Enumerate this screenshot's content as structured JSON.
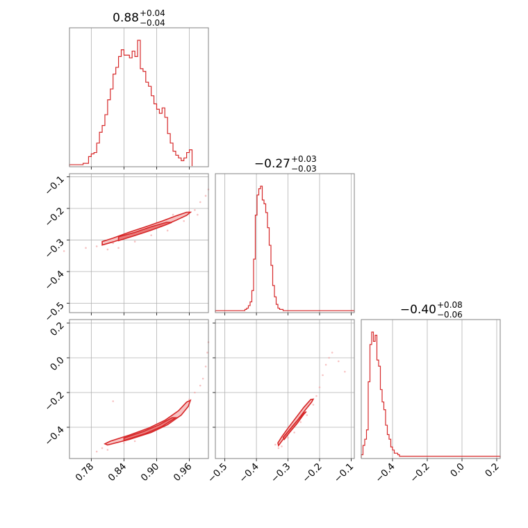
{
  "chart_data": {
    "type": "corner",
    "colors": {
      "line": "#d62728",
      "grid": "#b0b0b0",
      "frame": "#808080",
      "scatter": "#f4a8a8",
      "fill_outer": "#f7c4c4",
      "fill_inner": "#e97a7a"
    },
    "parameters": [
      {
        "id": "p0",
        "title": {
          "median": "0.88",
          "plus": "+0.04",
          "minus": "−0.04"
        },
        "range": [
          0.74,
          0.995
        ],
        "ticks": [
          0.78,
          0.84,
          0.9,
          0.96
        ],
        "tick_labels": [
          "0.78",
          "0.84",
          "0.90",
          "0.96"
        ],
        "histogram": {
          "bin_start": 0.74,
          "bin_width": 0.005,
          "values": [
            0.01,
            0.01,
            0.01,
            0.01,
            0.01,
            0.02,
            0.02,
            0.07,
            0.09,
            0.1,
            0.17,
            0.25,
            0.3,
            0.38,
            0.49,
            0.57,
            0.68,
            0.73,
            0.81,
            0.86,
            0.82,
            0.82,
            0.8,
            0.85,
            0.81,
            0.93,
            0.72,
            0.7,
            0.62,
            0.59,
            0.52,
            0.46,
            0.42,
            0.39,
            0.43,
            0.36,
            0.24,
            0.17,
            0.11,
            0.08,
            0.06,
            0.04,
            0.06,
            0.1,
            0.12
          ]
        }
      },
      {
        "id": "p1",
        "title": {
          "median": "−0.27",
          "plus": "+0.03",
          "minus": "−0.03"
        },
        "range": [
          -0.53,
          -0.09
        ],
        "ticks": [
          -0.5,
          -0.4,
          -0.3,
          -0.2,
          -0.1
        ],
        "tick_labels": [
          "−0.5",
          "−0.4",
          "−0.3",
          "−0.2",
          "−0.1"
        ],
        "histogram": {
          "bin_start": -0.53,
          "bin_width": 0.0055,
          "values": [
            0.01,
            0.01,
            0.01,
            0.01,
            0.01,
            0.01,
            0.01,
            0.01,
            0.01,
            0.01,
            0.01,
            0.01,
            0.01,
            0.01,
            0.01,
            0.01,
            0.01,
            0.02,
            0.03,
            0.05,
            0.08,
            0.17,
            0.42,
            0.77,
            0.93,
            0.98,
            1.0,
            0.89,
            0.86,
            0.79,
            0.67,
            0.53,
            0.37,
            0.21,
            0.12,
            0.06,
            0.03,
            0.02,
            0.02,
            0.01,
            0.01,
            0.01,
            0.01,
            0.01,
            0.01,
            0.01,
            0.01,
            0.01,
            0.01,
            0.01,
            0.01,
            0.01,
            0.01,
            0.01,
            0.01,
            0.01,
            0.01,
            0.01,
            0.01,
            0.01,
            0.01,
            0.01,
            0.01,
            0.01,
            0.01,
            0.01,
            0.01,
            0.01,
            0.01,
            0.01,
            0.01,
            0.01,
            0.01,
            0.01,
            0.01,
            0.01,
            0.01,
            0.01,
            0.01,
            0.01
          ]
        }
      },
      {
        "id": "p2",
        "title": {
          "median": "−0.40",
          "plus": "+0.08",
          "minus": "−0.06"
        },
        "range": [
          -0.58,
          0.22
        ],
        "ticks": [
          -0.4,
          -0.2,
          0.0,
          0.2
        ],
        "tick_labels": [
          "−0.4",
          "−0.2",
          "0.0",
          "0.2"
        ],
        "histogram": {
          "bin_start": -0.58,
          "bin_width": 0.01,
          "values": [
            0.02,
            0.08,
            0.12,
            0.18,
            0.49,
            0.73,
            0.81,
            0.75,
            0.79,
            0.63,
            0.59,
            0.44,
            0.36,
            0.31,
            0.21,
            0.15,
            0.12,
            0.07,
            0.05,
            0.03,
            0.03,
            0.02,
            0.01,
            0.01,
            0.01,
            0.01,
            0.01,
            0.01,
            0.01,
            0.01,
            0.01,
            0.01,
            0.01,
            0.01,
            0.01,
            0.01,
            0.01,
            0.01,
            0.01,
            0.01,
            0.01,
            0.01,
            0.01,
            0.01,
            0.01,
            0.01,
            0.01,
            0.01,
            0.01,
            0.01,
            0.01,
            0.01,
            0.01,
            0.01,
            0.01,
            0.01,
            0.01,
            0.01,
            0.01,
            0.01,
            0.01,
            0.01,
            0.01,
            0.01,
            0.01,
            0.01,
            0.01,
            0.01,
            0.01,
            0.01,
            0.01,
            0.01,
            0.01,
            0.01,
            0.01,
            0.01,
            0.01,
            0.01,
            0.01,
            0.01
          ]
        }
      }
    ],
    "pairs": [
      {
        "x": "p0",
        "y": "p1",
        "outer_contour": [
          [
            0.8,
            -0.316
          ],
          [
            0.82,
            -0.306
          ],
          [
            0.85,
            -0.289
          ],
          [
            0.88,
            -0.273
          ],
          [
            0.91,
            -0.256
          ],
          [
            0.935,
            -0.238
          ],
          [
            0.955,
            -0.222
          ],
          [
            0.962,
            -0.212
          ],
          [
            0.955,
            -0.212
          ],
          [
            0.935,
            -0.224
          ],
          [
            0.91,
            -0.24
          ],
          [
            0.88,
            -0.258
          ],
          [
            0.85,
            -0.275
          ],
          [
            0.82,
            -0.294
          ],
          [
            0.8,
            -0.305
          ]
        ],
        "inner_contour": [
          [
            0.83,
            -0.302
          ],
          [
            0.86,
            -0.286
          ],
          [
            0.89,
            -0.269
          ],
          [
            0.915,
            -0.253
          ],
          [
            0.928,
            -0.244
          ],
          [
            0.918,
            -0.244
          ],
          [
            0.89,
            -0.258
          ],
          [
            0.86,
            -0.276
          ],
          [
            0.83,
            -0.29
          ]
        ],
        "scatter": [
          [
            0.73,
            -0.335
          ],
          [
            0.77,
            -0.325
          ],
          [
            0.79,
            -0.32
          ],
          [
            0.81,
            -0.33
          ],
          [
            0.82,
            -0.31
          ],
          [
            0.83,
            -0.325
          ],
          [
            0.84,
            -0.29
          ],
          [
            0.86,
            -0.305
          ],
          [
            0.87,
            -0.27
          ],
          [
            0.89,
            -0.285
          ],
          [
            0.9,
            -0.245
          ],
          [
            0.92,
            -0.27
          ],
          [
            0.93,
            -0.22
          ],
          [
            0.95,
            -0.24
          ],
          [
            0.96,
            -0.21
          ],
          [
            0.97,
            -0.205
          ],
          [
            0.98,
            -0.18
          ],
          [
            0.99,
            -0.16
          ],
          [
            0.995,
            -0.14
          ],
          [
            0.975,
            -0.22
          ]
        ]
      },
      {
        "x": "p0",
        "y": "p2",
        "outer_contour": [
          [
            0.81,
            -0.502
          ],
          [
            0.85,
            -0.47
          ],
          [
            0.89,
            -0.43
          ],
          [
            0.92,
            -0.385
          ],
          [
            0.945,
            -0.33
          ],
          [
            0.958,
            -0.28
          ],
          [
            0.962,
            -0.245
          ],
          [
            0.955,
            -0.255
          ],
          [
            0.94,
            -0.305
          ],
          [
            0.915,
            -0.36
          ],
          [
            0.885,
            -0.405
          ],
          [
            0.85,
            -0.445
          ],
          [
            0.815,
            -0.48
          ],
          [
            0.805,
            -0.495
          ]
        ],
        "inner_contour": [
          [
            0.84,
            -0.476
          ],
          [
            0.88,
            -0.436
          ],
          [
            0.91,
            -0.395
          ],
          [
            0.935,
            -0.345
          ],
          [
            0.928,
            -0.345
          ],
          [
            0.905,
            -0.385
          ],
          [
            0.875,
            -0.425
          ],
          [
            0.84,
            -0.462
          ]
        ],
        "scatter": [
          [
            0.79,
            -0.54
          ],
          [
            0.8,
            -0.52
          ],
          [
            0.81,
            -0.53
          ],
          [
            0.82,
            -0.25
          ],
          [
            0.84,
            -0.49
          ],
          [
            0.86,
            -0.48
          ],
          [
            0.9,
            -0.4
          ],
          [
            0.92,
            -0.37
          ],
          [
            0.94,
            -0.31
          ],
          [
            0.96,
            -0.24
          ],
          [
            0.97,
            -0.2
          ],
          [
            0.98,
            -0.16
          ],
          [
            0.985,
            -0.12
          ],
          [
            0.99,
            -0.05
          ],
          [
            0.993,
            0.03
          ],
          [
            0.995,
            0.09
          ]
        ]
      },
      {
        "x": "p1",
        "y": "p2",
        "outer_contour": [
          [
            -0.33,
            -0.505
          ],
          [
            -0.318,
            -0.475
          ],
          [
            -0.295,
            -0.42
          ],
          [
            -0.27,
            -0.36
          ],
          [
            -0.245,
            -0.3
          ],
          [
            -0.225,
            -0.255
          ],
          [
            -0.22,
            -0.238
          ],
          [
            -0.228,
            -0.24
          ],
          [
            -0.25,
            -0.285
          ],
          [
            -0.275,
            -0.345
          ],
          [
            -0.3,
            -0.405
          ],
          [
            -0.32,
            -0.455
          ],
          [
            -0.332,
            -0.49
          ]
        ],
        "inner_contour": [
          [
            -0.312,
            -0.47
          ],
          [
            -0.295,
            -0.43
          ],
          [
            -0.272,
            -0.38
          ],
          [
            -0.25,
            -0.325
          ],
          [
            -0.242,
            -0.31
          ],
          [
            -0.25,
            -0.32
          ],
          [
            -0.275,
            -0.37
          ],
          [
            -0.298,
            -0.42
          ],
          [
            -0.315,
            -0.458
          ]
        ],
        "scatter": [
          [
            -0.34,
            -0.5
          ],
          [
            -0.33,
            -0.52
          ],
          [
            -0.32,
            -0.51
          ],
          [
            -0.3,
            -0.46
          ],
          [
            -0.28,
            -0.43
          ],
          [
            -0.26,
            -0.37
          ],
          [
            -0.24,
            -0.33
          ],
          [
            -0.22,
            -0.27
          ],
          [
            -0.21,
            -0.22
          ],
          [
            -0.2,
            -0.17
          ],
          [
            -0.19,
            -0.1
          ],
          [
            -0.18,
            -0.04
          ],
          [
            -0.17,
            0.0
          ],
          [
            -0.16,
            0.03
          ],
          [
            -0.14,
            -0.02
          ],
          [
            -0.12,
            -0.08
          ]
        ]
      }
    ]
  }
}
